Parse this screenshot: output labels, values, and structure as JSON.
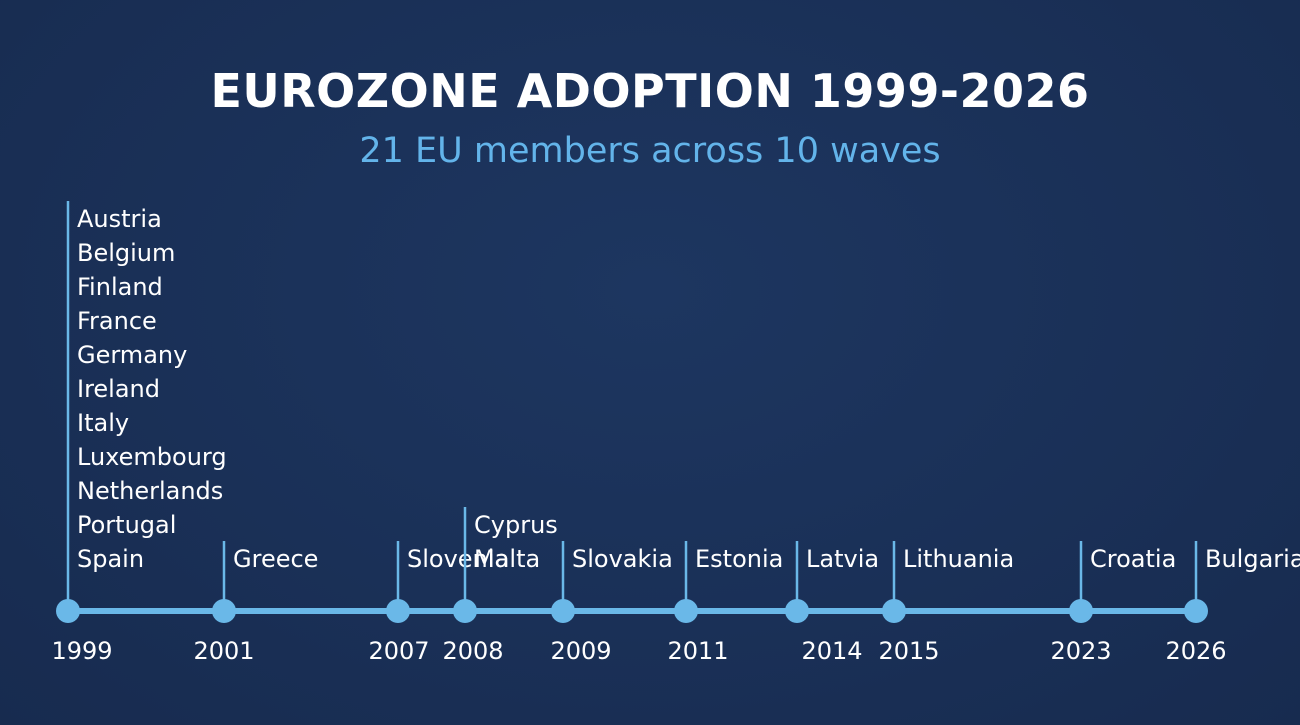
{
  "title": "EUROZONE ADOPTION 1999-2026",
  "subtitle": "21 EU members across 10 waves",
  "colors": {
    "background": "#1a3057",
    "accent": "#6ab8e8",
    "text": "#ffffff",
    "subtitle": "#63b4ea"
  },
  "waves": [
    {
      "year": "1999",
      "countries": [
        "Austria",
        "Belgium",
        "Finland",
        "France",
        "Germany",
        "Ireland",
        "Italy",
        "Luxembourg",
        "Netherlands",
        "Portugal",
        "Spain"
      ]
    },
    {
      "year": "2001",
      "countries": [
        "Greece"
      ]
    },
    {
      "year": "2007",
      "countries": [
        "Slovenia"
      ]
    },
    {
      "year": "2008",
      "countries": [
        "Cyprus",
        "Malta"
      ]
    },
    {
      "year": "2009",
      "countries": [
        "Slovakia"
      ]
    },
    {
      "year": "2011",
      "countries": [
        "Estonia"
      ]
    },
    {
      "year": "2014",
      "countries": [
        "Latvia"
      ]
    },
    {
      "year": "2015",
      "countries": [
        "Lithuania"
      ]
    },
    {
      "year": "2023",
      "countries": [
        "Croatia"
      ]
    },
    {
      "year": "2026",
      "countries": [
        "Bulgaria"
      ]
    }
  ]
}
